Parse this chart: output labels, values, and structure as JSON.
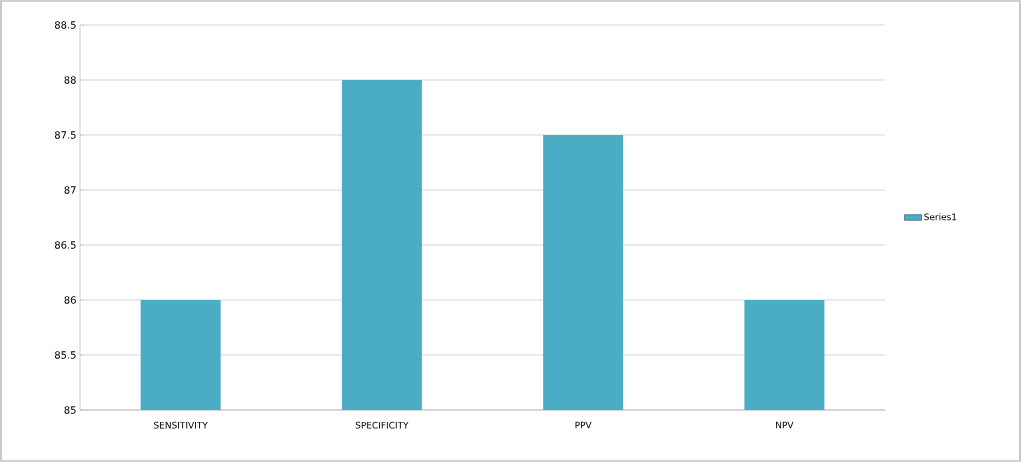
{
  "chart_data": {
    "type": "bar",
    "categories": [
      "SENSITIVITY",
      "SPECIFICITY",
      "PPV",
      "NPV"
    ],
    "series": [
      {
        "name": "Series1",
        "color": "#4bacc6",
        "values": [
          86,
          88,
          87.5,
          86
        ]
      }
    ],
    "ylim": [
      85,
      88.5
    ],
    "yticks": [
      85,
      85.5,
      86,
      86.5,
      87,
      87.5,
      88,
      88.5
    ],
    "grid": "y",
    "legend": "right"
  }
}
